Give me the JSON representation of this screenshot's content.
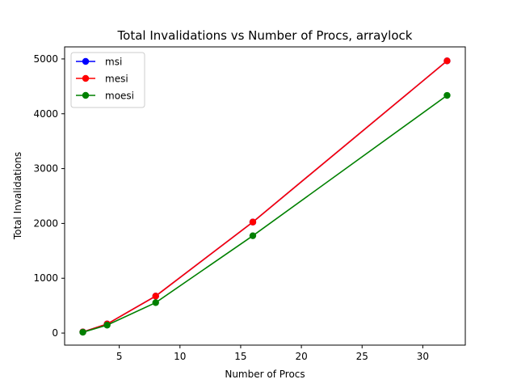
{
  "chart_data": {
    "type": "line",
    "title": "Total Invalidations vs Number of Procs, arraylock",
    "xlabel": "Number of Procs",
    "ylabel": "Total Invalidations",
    "xlim": [
      0.5,
      33.5
    ],
    "ylim": [
      -220,
      5220
    ],
    "xticks": [
      5,
      10,
      15,
      20,
      25,
      30
    ],
    "yticks": [
      0,
      1000,
      2000,
      3000,
      4000,
      5000
    ],
    "x": [
      2,
      4,
      8,
      16,
      32
    ],
    "grid": false,
    "legend_position": "top-left",
    "series": [
      {
        "name": "msi",
        "color": "#0000ff",
        "values": [
          20,
          165,
          675,
          2025,
          4965
        ]
      },
      {
        "name": "mesi",
        "color": "#ff0000",
        "values": [
          20,
          165,
          675,
          2025,
          4965
        ]
      },
      {
        "name": "moesi",
        "color": "#008000",
        "values": [
          15,
          145,
          555,
          1775,
          4335
        ]
      }
    ]
  }
}
